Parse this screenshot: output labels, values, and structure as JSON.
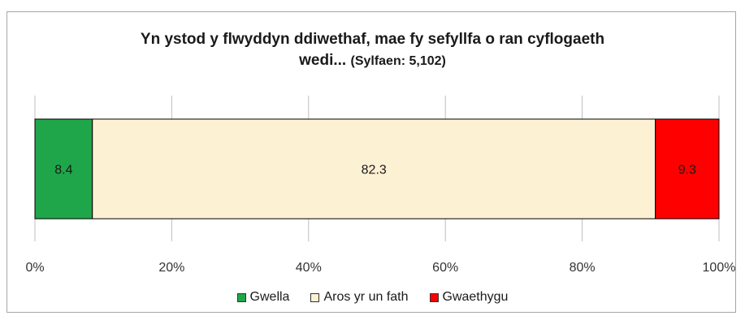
{
  "chart_data": {
    "type": "bar",
    "orientation": "horizontal-stacked-100",
    "title": "Yn ystod y flwyddyn ddiwethaf, mae fy sefyllfa o ran cyflogaeth wedi...",
    "title_line1": "Yn ystod y flwyddyn ddiwethaf, mae fy sefyllfa o ran cyflogaeth",
    "title_line2": "wedi...",
    "subtitle": "(Sylfaen: 5,102)",
    "x_ticks": [
      "0%",
      "20%",
      "40%",
      "60%",
      "80%",
      "100%"
    ],
    "xlim": [
      0,
      100
    ],
    "grid": true,
    "legend_position": "bottom",
    "series": [
      {
        "name": "Gwella",
        "value": 8.4,
        "label": "8.4",
        "color": "#1fa64a"
      },
      {
        "name": "Aros yr un fath",
        "value": 82.3,
        "label": "82.3",
        "color": "#fdf1d3"
      },
      {
        "name": "Gwaethygu",
        "value": 9.3,
        "label": "9.3",
        "color": "#ff0000"
      }
    ]
  }
}
